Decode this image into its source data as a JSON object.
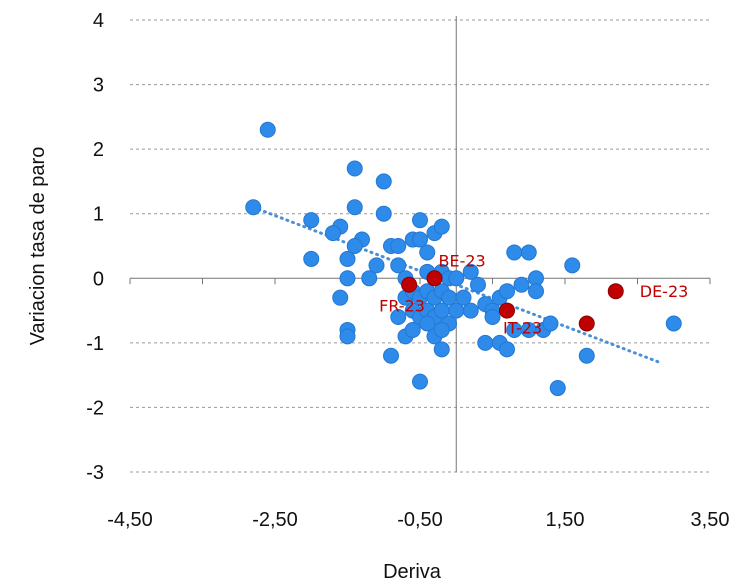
{
  "chart_data": {
    "type": "scatter",
    "title": "",
    "xlabel": "Deriva",
    "ylabel": "Variacion tasa de paro",
    "xlim": [
      -4.5,
      3.5
    ],
    "ylim": [
      -3,
      4
    ],
    "x_ticks": [
      "-4,50",
      "-2,50",
      "-0,50",
      "1,50",
      "3,50"
    ],
    "x_tick_values": [
      -4.5,
      -2.5,
      -0.5,
      1.5,
      3.5
    ],
    "y_ticks": [
      "-3",
      "-2",
      "-1",
      "0",
      "1",
      "2",
      "3",
      "4"
    ],
    "y_tick_values": [
      -3,
      -2,
      -1,
      0,
      1,
      2,
      3,
      4
    ],
    "grid": "horizontal-dashed",
    "colors": {
      "points": "#2e8bea",
      "highlight": "#c00000",
      "trend": "#4a90d9",
      "grid": "#999999",
      "axis": "#777777"
    },
    "trendline": {
      "x": [
        -2.8,
        2.8
      ],
      "y": [
        1.1,
        -1.3
      ]
    },
    "points": [
      {
        "x": -2.6,
        "y": 2.3
      },
      {
        "x": -2.8,
        "y": 1.1
      },
      {
        "x": -2.0,
        "y": 0.9
      },
      {
        "x": -2.0,
        "y": 0.3
      },
      {
        "x": -1.6,
        "y": 0.8
      },
      {
        "x": -1.7,
        "y": 0.7
      },
      {
        "x": -1.6,
        "y": -0.3
      },
      {
        "x": -1.5,
        "y": 0.0
      },
      {
        "x": -1.5,
        "y": 0.3
      },
      {
        "x": -1.5,
        "y": -0.8
      },
      {
        "x": -1.3,
        "y": 0.6
      },
      {
        "x": -1.4,
        "y": 0.5
      },
      {
        "x": -1.4,
        "y": 1.7
      },
      {
        "x": -1.4,
        "y": 1.1
      },
      {
        "x": -1.2,
        "y": 0.0
      },
      {
        "x": -1.1,
        "y": 0.2
      },
      {
        "x": -1.0,
        "y": 1.5
      },
      {
        "x": -1.0,
        "y": 1.0
      },
      {
        "x": -0.9,
        "y": 0.5
      },
      {
        "x": -0.8,
        "y": 0.5
      },
      {
        "x": -0.8,
        "y": 0.2
      },
      {
        "x": -0.7,
        "y": 0.0
      },
      {
        "x": -0.6,
        "y": 0.6
      },
      {
        "x": -0.5,
        "y": 0.9
      },
      {
        "x": -0.5,
        "y": 0.6
      },
      {
        "x": -0.4,
        "y": 0.4
      },
      {
        "x": -0.3,
        "y": 0.7
      },
      {
        "x": -0.2,
        "y": 0.8
      },
      {
        "x": -0.4,
        "y": 0.1
      },
      {
        "x": -0.3,
        "y": 0.0
      },
      {
        "x": -0.2,
        "y": 0.1
      },
      {
        "x": -0.1,
        "y": 0.0
      },
      {
        "x": -0.7,
        "y": -0.3
      },
      {
        "x": -0.6,
        "y": -0.2
      },
      {
        "x": -0.5,
        "y": -0.3
      },
      {
        "x": -0.4,
        "y": -0.2
      },
      {
        "x": -0.3,
        "y": -0.3
      },
      {
        "x": -0.2,
        "y": -0.2
      },
      {
        "x": -0.1,
        "y": -0.3
      },
      {
        "x": -0.6,
        "y": -0.5
      },
      {
        "x": -0.5,
        "y": -0.6
      },
      {
        "x": -0.4,
        "y": -0.5
      },
      {
        "x": -0.3,
        "y": -0.6
      },
      {
        "x": -0.2,
        "y": -0.5
      },
      {
        "x": -0.1,
        "y": -0.7
      },
      {
        "x": -0.8,
        "y": -0.6
      },
      {
        "x": -0.7,
        "y": -0.9
      },
      {
        "x": -0.6,
        "y": -0.8
      },
      {
        "x": -0.4,
        "y": -0.7
      },
      {
        "x": -0.3,
        "y": -0.9
      },
      {
        "x": -0.2,
        "y": -0.8
      },
      {
        "x": -0.2,
        "y": -1.1
      },
      {
        "x": -0.9,
        "y": -1.2
      },
      {
        "x": -1.5,
        "y": -0.9
      },
      {
        "x": -0.5,
        "y": -1.6
      },
      {
        "x": 0.2,
        "y": 0.1
      },
      {
        "x": 0.4,
        "y": -0.4
      },
      {
        "x": 0.5,
        "y": -0.5
      },
      {
        "x": 0.5,
        "y": -0.6
      },
      {
        "x": 0.6,
        "y": -0.3
      },
      {
        "x": 0.7,
        "y": -0.2
      },
      {
        "x": 0.4,
        "y": -1.0
      },
      {
        "x": 0.6,
        "y": -1.0
      },
      {
        "x": 0.7,
        "y": -1.1
      },
      {
        "x": 0.8,
        "y": -0.8
      },
      {
        "x": 0.9,
        "y": -0.1
      },
      {
        "x": 1.0,
        "y": -0.8
      },
      {
        "x": 1.0,
        "y": 0.4
      },
      {
        "x": 1.1,
        "y": 0.0
      },
      {
        "x": 1.1,
        "y": -0.2
      },
      {
        "x": 1.2,
        "y": -0.8
      },
      {
        "x": 1.3,
        "y": -0.7
      },
      {
        "x": 1.4,
        "y": -1.7
      },
      {
        "x": 1.6,
        "y": 0.2
      },
      {
        "x": 1.8,
        "y": -1.2
      },
      {
        "x": 3.0,
        "y": -0.7
      },
      {
        "x": 0.1,
        "y": -0.3
      },
      {
        "x": 0.2,
        "y": -0.5
      },
      {
        "x": 0.0,
        "y": -0.5
      },
      {
        "x": 0.8,
        "y": 0.4
      },
      {
        "x": 0.3,
        "y": -0.1
      },
      {
        "x": 0.0,
        "y": 0.0
      }
    ],
    "highlighted": [
      {
        "label": "BE-23",
        "x": -0.3,
        "y": 0.0
      },
      {
        "label": "FR-23",
        "x": -0.65,
        "y": -0.1
      },
      {
        "label": "IT-23",
        "x": 0.7,
        "y": -0.5
      },
      {
        "label": "DE-23",
        "x": 2.2,
        "y": -0.2
      },
      {
        "label": "",
        "x": 1.8,
        "y": -0.7
      }
    ]
  }
}
